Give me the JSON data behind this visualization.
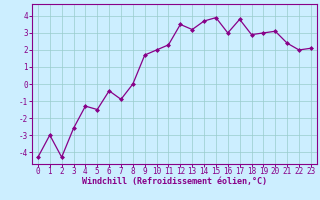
{
  "x": [
    0,
    1,
    2,
    3,
    4,
    5,
    6,
    7,
    8,
    9,
    10,
    11,
    12,
    13,
    14,
    15,
    16,
    17,
    18,
    19,
    20,
    21,
    22,
    23
  ],
  "y": [
    -4.3,
    -3.0,
    -4.3,
    -2.6,
    -1.3,
    -1.5,
    -0.4,
    -0.9,
    0.0,
    1.7,
    2.0,
    2.3,
    3.5,
    3.2,
    3.7,
    3.9,
    3.0,
    3.8,
    2.9,
    3.0,
    3.1,
    2.4,
    2.0,
    2.1
  ],
  "line_color": "#880088",
  "marker": "D",
  "marker_size": 2.0,
  "linewidth": 0.9,
  "bg_color": "#cceeff",
  "grid_color": "#99cccc",
  "xlabel": "Windchill (Refroidissement éolien,°C)",
  "xlabel_color": "#880088",
  "xlabel_fontsize": 6.0,
  "tick_color": "#880088",
  "tick_fontsize": 5.5,
  "ylim": [
    -4.7,
    4.7
  ],
  "xlim": [
    -0.5,
    23.5
  ],
  "yticks": [
    -4,
    -3,
    -2,
    -1,
    0,
    1,
    2,
    3,
    4
  ],
  "xticks": [
    0,
    1,
    2,
    3,
    4,
    5,
    6,
    7,
    8,
    9,
    10,
    11,
    12,
    13,
    14,
    15,
    16,
    17,
    18,
    19,
    20,
    21,
    22,
    23
  ]
}
